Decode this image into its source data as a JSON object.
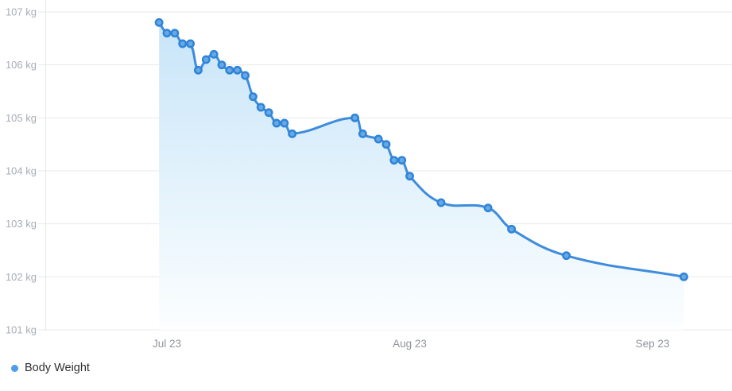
{
  "chart_data": {
    "type": "line",
    "title": "",
    "series": [
      {
        "name": "Body Weight",
        "unit": "kg",
        "points": [
          {
            "date": "Jul 22",
            "day": 0,
            "kg": 106.8
          },
          {
            "date": "Jul 23",
            "day": 1,
            "kg": 106.6
          },
          {
            "date": "Jul 24",
            "day": 2,
            "kg": 106.6
          },
          {
            "date": "Jul 25",
            "day": 3,
            "kg": 106.4
          },
          {
            "date": "Jul 26",
            "day": 4,
            "kg": 106.4
          },
          {
            "date": "Jul 27",
            "day": 5,
            "kg": 105.9
          },
          {
            "date": "Jul 28",
            "day": 6,
            "kg": 106.1
          },
          {
            "date": "Jul 29",
            "day": 7,
            "kg": 106.2
          },
          {
            "date": "Jul 30",
            "day": 8,
            "kg": 106.0
          },
          {
            "date": "Jul 31",
            "day": 9,
            "kg": 105.9
          },
          {
            "date": "Aug 1",
            "day": 10,
            "kg": 105.9
          },
          {
            "date": "Aug 2",
            "day": 11,
            "kg": 105.8
          },
          {
            "date": "Aug 3",
            "day": 12,
            "kg": 105.4
          },
          {
            "date": "Aug 4",
            "day": 13,
            "kg": 105.2
          },
          {
            "date": "Aug 5",
            "day": 14,
            "kg": 105.1
          },
          {
            "date": "Aug 6",
            "day": 15,
            "kg": 104.9
          },
          {
            "date": "Aug 7",
            "day": 16,
            "kg": 104.9
          },
          {
            "date": "Aug 8",
            "day": 17,
            "kg": 104.7
          },
          {
            "date": "Aug 16",
            "day": 25,
            "kg": 105.0
          },
          {
            "date": "Aug 17",
            "day": 26,
            "kg": 104.7
          },
          {
            "date": "Aug 19",
            "day": 28,
            "kg": 104.6
          },
          {
            "date": "Aug 20",
            "day": 29,
            "kg": 104.5
          },
          {
            "date": "Aug 21",
            "day": 30,
            "kg": 104.2
          },
          {
            "date": "Aug 22",
            "day": 31,
            "kg": 104.2
          },
          {
            "date": "Aug 23",
            "day": 32,
            "kg": 103.9
          },
          {
            "date": "Aug 27",
            "day": 36,
            "kg": 103.4
          },
          {
            "date": "Sep 2",
            "day": 42,
            "kg": 103.3
          },
          {
            "date": "Sep 5",
            "day": 45,
            "kg": 102.9
          },
          {
            "date": "Sep 12",
            "day": 52,
            "kg": 102.4
          },
          {
            "date": "Sep 27",
            "day": 67,
            "kg": 102.0
          }
        ]
      }
    ],
    "y_axis": {
      "min": 101,
      "max": 107,
      "tick_step": 1,
      "unit": "kg",
      "tick_labels": [
        "107 kg",
        "106 kg",
        "105 kg",
        "104 kg",
        "103 kg",
        "102 kg",
        "101 kg"
      ]
    },
    "x_axis": {
      "ticks": [
        {
          "label": "Jul 23",
          "day": 1
        },
        {
          "label": "Aug 23",
          "day": 32
        },
        {
          "label": "Sep 23",
          "day": 63
        }
      ]
    },
    "grid": true,
    "legend_position": "bottom-left"
  },
  "legend": {
    "items": [
      {
        "label": "Body Weight",
        "color": "#4d9de9"
      }
    ]
  },
  "colors": {
    "line": "#3e8cdc",
    "point_fill": "#67a9e4",
    "point_stroke": "#2f84d8",
    "area_top": "#c6e4f8",
    "area_bottom": "#fcfeff",
    "grid": "#e9e9e9",
    "axis_line": "#e4e6e8",
    "y_label": "#a7adb5",
    "x_label": "#8f959c"
  }
}
